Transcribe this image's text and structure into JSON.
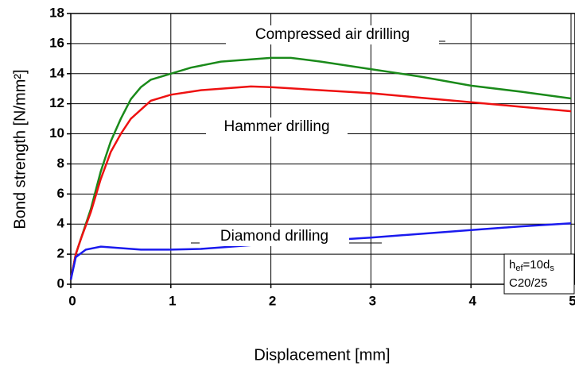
{
  "chart_data": {
    "type": "line",
    "x_label": "Displacement [mm]",
    "y_label": "Bond strength [N/mm²]",
    "xlim": [
      0,
      5
    ],
    "ylim": [
      0,
      18
    ],
    "xticks": [
      0,
      1,
      2,
      3,
      4,
      5
    ],
    "yticks": [
      0,
      2,
      4,
      6,
      8,
      10,
      12,
      14,
      16,
      18
    ],
    "grid": true,
    "annotations": [
      "Compressed air drilling",
      "Hammer drilling",
      "Diamond drilling"
    ],
    "box_text": {
      "line1": [
        "h",
        "ef",
        "=10d",
        "s"
      ],
      "line2": "C20/25"
    },
    "series": [
      {
        "name": "Compressed air drilling",
        "color": "#1a8a1a",
        "x": [
          0,
          0.05,
          0.1,
          0.2,
          0.3,
          0.4,
          0.5,
          0.6,
          0.7,
          0.8,
          1.0,
          1.2,
          1.5,
          2.0,
          2.2,
          2.5,
          3.0,
          3.5,
          4.0,
          4.5,
          5.0
        ],
        "values": [
          0.3,
          2,
          3,
          5,
          7.5,
          9.5,
          11,
          12.3,
          13.1,
          13.6,
          14.0,
          14.4,
          14.8,
          15.05,
          15.05,
          14.8,
          14.3,
          13.8,
          13.2,
          12.8,
          12.35
        ]
      },
      {
        "name": "Hammer drilling",
        "color": "#ee1111",
        "x": [
          0,
          0.05,
          0.1,
          0.2,
          0.3,
          0.4,
          0.5,
          0.6,
          0.7,
          0.8,
          1.0,
          1.3,
          1.5,
          1.8,
          2.0,
          2.5,
          3.0,
          3.5,
          4.0,
          4.5,
          5.0
        ],
        "values": [
          0.3,
          2,
          3,
          4.8,
          7,
          8.8,
          10,
          11,
          11.6,
          12.2,
          12.6,
          12.9,
          13.0,
          13.15,
          13.1,
          12.9,
          12.7,
          12.4,
          12.1,
          11.8,
          11.5
        ]
      },
      {
        "name": "Diamond drilling",
        "color": "#1a1aee",
        "x": [
          0,
          0.05,
          0.15,
          0.3,
          0.5,
          0.7,
          1.0,
          1.3,
          1.5,
          2.0,
          2.5,
          3.0,
          3.5,
          4.0,
          4.5,
          5.0
        ],
        "values": [
          0.3,
          1.8,
          2.3,
          2.5,
          2.4,
          2.3,
          2.3,
          2.35,
          2.45,
          2.7,
          2.9,
          3.1,
          3.35,
          3.6,
          3.85,
          4.05
        ]
      }
    ]
  }
}
